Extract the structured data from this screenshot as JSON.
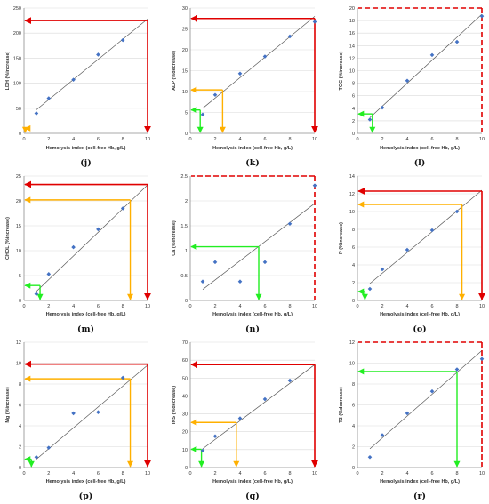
{
  "colors": {
    "point": "#4472C4",
    "trend": "#595959",
    "grid": "#d9d9d9",
    "red": "#e00000",
    "orange": "#ffb000",
    "green": "#22ee22"
  },
  "chart_data": [
    {
      "type": "scatter",
      "panel": "(j)",
      "xlabel": "Hemolysis index (cell-free Hb, g/L)",
      "ylabel": "LDH (%increase)",
      "xlim": [
        0,
        10
      ],
      "ylim": [
        0,
        250
      ],
      "xticks": [
        0,
        2,
        4,
        6,
        8,
        10
      ],
      "yticks": [
        0,
        50,
        100,
        150,
        200,
        250
      ],
      "points": [
        [
          1,
          40
        ],
        [
          2,
          70
        ],
        [
          4,
          107
        ],
        [
          6,
          157
        ],
        [
          8,
          186
        ]
      ],
      "trend": [
        [
          1,
          47
        ],
        [
          10,
          228
        ]
      ],
      "guides": [
        {
          "color": "red",
          "x": 10,
          "y": 225,
          "style": "solid"
        },
        {
          "color": "orange",
          "x": 0.1,
          "y": 10,
          "style": "solid"
        }
      ]
    },
    {
      "type": "scatter",
      "panel": "(k)",
      "xlabel": "Hemolysis index (cell-free Hb, g/L)",
      "ylabel": "ALP (%decrease)",
      "xlim": [
        0,
        10
      ],
      "ylim": [
        0,
        30
      ],
      "xticks": [
        0,
        2,
        4,
        6,
        8,
        10
      ],
      "yticks": [
        0,
        5,
        10,
        15,
        20,
        25,
        30
      ],
      "points": [
        [
          1,
          4.5
        ],
        [
          2,
          9.2
        ],
        [
          4,
          14.3
        ],
        [
          6,
          18.4
        ],
        [
          8,
          23.2
        ],
        [
          10,
          26.7
        ]
      ],
      "trend": [
        [
          1,
          6
        ],
        [
          10,
          28
        ]
      ],
      "guides": [
        {
          "color": "red",
          "x": 10,
          "y": 27.5,
          "style": "solid"
        },
        {
          "color": "orange",
          "x": 2.6,
          "y": 10.4,
          "style": "solid"
        },
        {
          "color": "green",
          "x": 0.8,
          "y": 5.6,
          "style": "solid"
        }
      ]
    },
    {
      "type": "scatter",
      "panel": "(l)",
      "xlabel": "Hemolysis index (cell-free Hb, g/L)",
      "ylabel": "TGC (%increase)",
      "xlim": [
        0,
        10
      ],
      "ylim": [
        0,
        20
      ],
      "xticks": [
        0,
        2,
        4,
        6,
        8,
        10
      ],
      "yticks": [
        0,
        2,
        4,
        6,
        8,
        10,
        12,
        14,
        16,
        18,
        20
      ],
      "points": [
        [
          1,
          2.2
        ],
        [
          2,
          4.1
        ],
        [
          4,
          8.4
        ],
        [
          6,
          12.5
        ],
        [
          8,
          14.6
        ],
        [
          10,
          18.7
        ]
      ],
      "trend": [
        [
          1,
          2.5
        ],
        [
          10,
          19
        ]
      ],
      "guides": [
        {
          "color": "red",
          "x": 10,
          "y": 20,
          "style": "dashed"
        },
        {
          "color": "green",
          "x": 1.2,
          "y": 3.1,
          "style": "solid"
        }
      ]
    },
    {
      "type": "scatter",
      "panel": "(m)",
      "xlabel": "Hemolysis index (cell-free Hb, g/L)",
      "ylabel": "CHOL (%increase)",
      "xlim": [
        0,
        10
      ],
      "ylim": [
        0,
        25
      ],
      "xticks": [
        0,
        2,
        4,
        6,
        8,
        10
      ],
      "yticks": [
        0,
        5,
        10,
        15,
        20,
        25
      ],
      "points": [
        [
          1,
          1.3
        ],
        [
          2,
          5.3
        ],
        [
          4,
          10.7
        ],
        [
          6,
          14.3
        ],
        [
          8,
          18.5
        ]
      ],
      "trend": [
        [
          1,
          1.8
        ],
        [
          10,
          23.2
        ]
      ],
      "guides": [
        {
          "color": "red",
          "x": 10,
          "y": 23.3,
          "style": "solid"
        },
        {
          "color": "orange",
          "x": 8.6,
          "y": 20.2,
          "style": "solid"
        },
        {
          "color": "green",
          "x": 1.3,
          "y": 3.0,
          "style": "solid"
        }
      ]
    },
    {
      "type": "scatter",
      "panel": "(n)",
      "xlabel": "Hemolysis index (cell-free Hb, g/L)",
      "ylabel": "Ca (%increase)",
      "xlim": [
        0,
        10
      ],
      "ylim": [
        0,
        2.5
      ],
      "xticks": [
        0,
        2,
        4,
        6,
        8,
        10
      ],
      "yticks": [
        0,
        0.5,
        1,
        1.5,
        2,
        2.5
      ],
      "points": [
        [
          1,
          0.38
        ],
        [
          2,
          0.77
        ],
        [
          4,
          0.38
        ],
        [
          6,
          0.77
        ],
        [
          8,
          1.54
        ],
        [
          10,
          2.31
        ]
      ],
      "trend": [
        [
          1,
          0.22
        ],
        [
          10,
          1.95
        ]
      ],
      "guides": [
        {
          "color": "red",
          "x": 10,
          "y": 2.5,
          "style": "dashed"
        },
        {
          "color": "green",
          "x": 5.5,
          "y": 1.08,
          "style": "solid"
        }
      ]
    },
    {
      "type": "scatter",
      "panel": "(o)",
      "xlabel": "Hemolysis index (cell-free Hb, g/L)",
      "ylabel": "P (%increase)",
      "xlim": [
        0,
        10
      ],
      "ylim": [
        0,
        14
      ],
      "xticks": [
        0,
        2,
        4,
        6,
        8,
        10
      ],
      "yticks": [
        0,
        2,
        4,
        6,
        8,
        10,
        12,
        14
      ],
      "points": [
        [
          1,
          1.3
        ],
        [
          2,
          3.5
        ],
        [
          4,
          5.7
        ],
        [
          6,
          7.9
        ],
        [
          8,
          10.0
        ]
      ],
      "trend": [
        [
          1,
          1.9
        ],
        [
          10,
          12.4
        ]
      ],
      "guides": [
        {
          "color": "red",
          "x": 10,
          "y": 12.3,
          "style": "solid"
        },
        {
          "color": "orange",
          "x": 8.4,
          "y": 10.8,
          "style": "solid"
        },
        {
          "color": "green",
          "x": 0.6,
          "y": 1.0,
          "style": "solid"
        }
      ]
    },
    {
      "type": "scatter",
      "panel": "(p)",
      "xlabel": "Hemolysis index (cell-free Hb, g/L)",
      "ylabel": "Mg (%increase)",
      "xlim": [
        0,
        10
      ],
      "ylim": [
        0,
        12
      ],
      "xticks": [
        0,
        2,
        4,
        6,
        8,
        10
      ],
      "yticks": [
        0,
        2,
        4,
        6,
        8,
        10,
        12
      ],
      "points": [
        [
          1,
          1.0
        ],
        [
          2,
          1.9
        ],
        [
          4,
          5.2
        ],
        [
          6,
          5.3
        ],
        [
          8,
          8.6
        ]
      ],
      "trend": [
        [
          1,
          0.8
        ],
        [
          10,
          9.8
        ]
      ],
      "guides": [
        {
          "color": "red",
          "x": 10,
          "y": 9.9,
          "style": "solid"
        },
        {
          "color": "orange",
          "x": 8.6,
          "y": 8.5,
          "style": "solid"
        },
        {
          "color": "green",
          "x": 0.6,
          "y": 0.8,
          "style": "solid"
        }
      ]
    },
    {
      "type": "scatter",
      "panel": "(q)",
      "xlabel": "Hemolysis index (cell-free Hb, g/L)",
      "ylabel": "INS (%decrease)",
      "xlim": [
        0,
        10
      ],
      "ylim": [
        0,
        70
      ],
      "xticks": [
        0,
        2,
        4,
        6,
        8,
        10
      ],
      "yticks": [
        0,
        10,
        20,
        30,
        40,
        50,
        60,
        70
      ],
      "points": [
        [
          1,
          9.5
        ],
        [
          2,
          17.5
        ],
        [
          4,
          27.5
        ],
        [
          6,
          38.2
        ],
        [
          8,
          48.6
        ]
      ],
      "trend": [
        [
          1,
          10.5
        ],
        [
          10,
          57.5
        ]
      ],
      "guides": [
        {
          "color": "red",
          "x": 10,
          "y": 57.5,
          "style": "solid"
        },
        {
          "color": "orange",
          "x": 3.7,
          "y": 25.2,
          "style": "solid"
        },
        {
          "color": "green",
          "x": 0.9,
          "y": 10.2,
          "style": "solid"
        }
      ]
    },
    {
      "type": "scatter",
      "panel": "(r)",
      "xlabel": "Hemolysis index (cell-free Hb, g/L)",
      "ylabel": "T3 (%decrease)",
      "xlim": [
        0,
        10
      ],
      "ylim": [
        0,
        12
      ],
      "xticks": [
        0,
        2,
        4,
        6,
        8,
        10
      ],
      "yticks": [
        0,
        2,
        4,
        6,
        8,
        10,
        12
      ],
      "points": [
        [
          1,
          1.0
        ],
        [
          2,
          3.1
        ],
        [
          4,
          5.2
        ],
        [
          6,
          7.3
        ],
        [
          8,
          9.4
        ],
        [
          10,
          10.4
        ]
      ],
      "trend": [
        [
          1,
          1.8
        ],
        [
          10,
          11.2
        ]
      ],
      "guides": [
        {
          "color": "red",
          "x": 10,
          "y": 12,
          "style": "dashed"
        },
        {
          "color": "green",
          "x": 8.0,
          "y": 9.2,
          "style": "solid"
        }
      ]
    }
  ]
}
